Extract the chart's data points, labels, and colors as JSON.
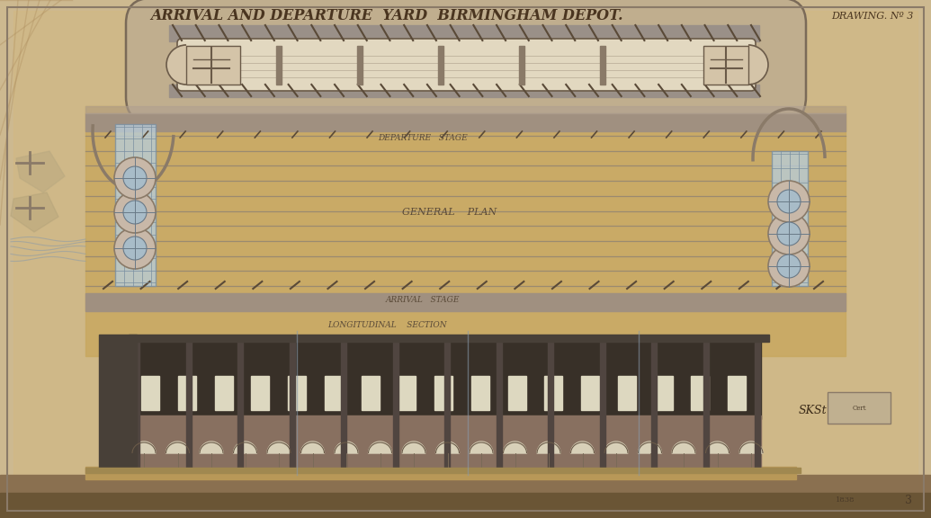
{
  "title": "ARRIVAL AND DEPARTURE  YARD  BIRMINGHAM DEPOT.",
  "drawing_no": "DRAWING. Nº 3",
  "bg_color": "#cdb990",
  "paper_color": "#c8a87a",
  "track_color": "#8a7a65",
  "wall_color": "#9a8a78",
  "blue_gray": "#8899aa",
  "dark_gray": "#555555",
  "building_dark": "#3a3530",
  "label_departure_stage": "DEPARTURE   STAGE",
  "label_general_plan": "GENERAL    PLAN",
  "label_arrival_stage": "ARRIVAL   STAGE",
  "label_longitudinal": "LONGITUDINAL    SECTION",
  "signature": "SKSt"
}
